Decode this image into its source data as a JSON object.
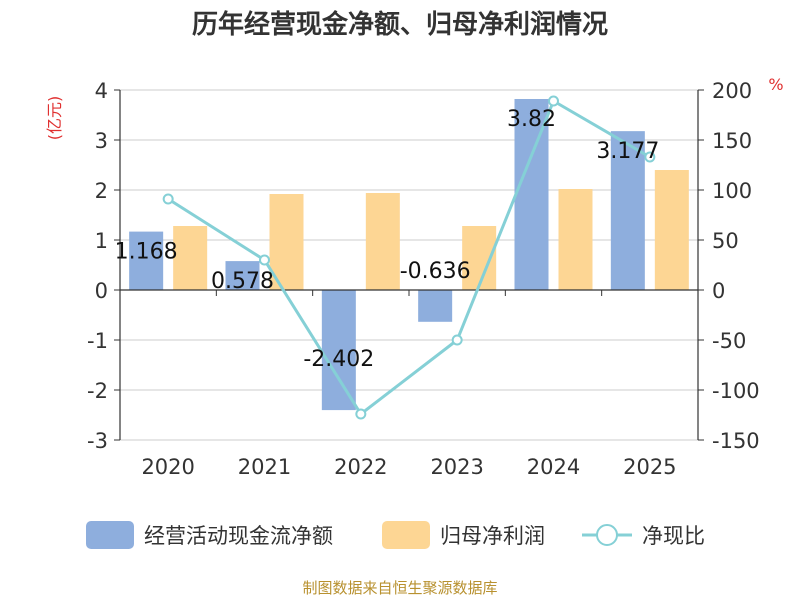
{
  "chart_data": {
    "type": "bar",
    "title": "历年经营现金净额、归母净利润情况",
    "categories": [
      "2020",
      "2021",
      "2022",
      "2023",
      "2024",
      "2025"
    ],
    "y_left": {
      "unit": "(亿元)",
      "lim": [
        -3,
        4
      ],
      "ticks": [
        4,
        3,
        2,
        1,
        0,
        -1,
        -2,
        -3
      ]
    },
    "y_right": {
      "unit": "%",
      "lim": [
        -150,
        200
      ],
      "ticks": [
        200,
        150,
        100,
        50,
        0,
        -50,
        -100,
        -150
      ]
    },
    "series": [
      {
        "name": "经营活动现金流净额",
        "type": "bar",
        "axis": "left",
        "color": "#8eaedd",
        "values": [
          1.168,
          0.578,
          -2.402,
          -0.636,
          3.82,
          3.177
        ],
        "labels": [
          "1.168",
          "0.578",
          "-2.402",
          "-0.636",
          "3.82",
          "3.177"
        ]
      },
      {
        "name": "归母净利润",
        "type": "bar",
        "axis": "left",
        "color": "#fdd694",
        "values": [
          1.28,
          1.92,
          1.94,
          1.28,
          2.02,
          2.4
        ]
      },
      {
        "name": "净现比",
        "type": "line",
        "axis": "right",
        "color": "#85d0d6",
        "values": [
          91,
          30,
          -124,
          -50,
          189,
          133
        ]
      }
    ],
    "grid": true,
    "legend": "bottom"
  },
  "footer": {
    "source": "制图数据来自恒生聚源数据库"
  }
}
